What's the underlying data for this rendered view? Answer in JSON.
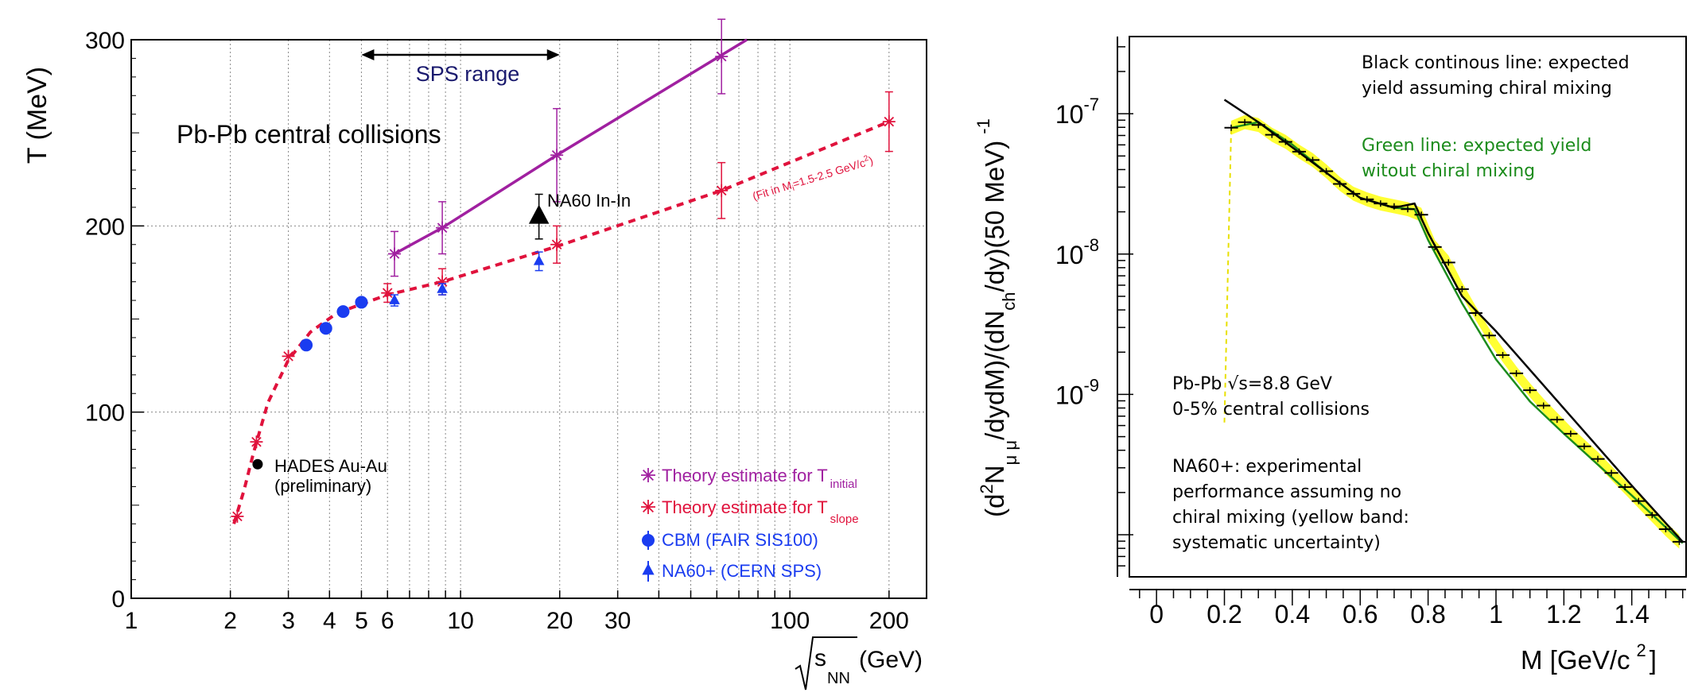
{
  "chart_data": [
    {
      "type": "scatter",
      "xscale": "log",
      "title": "Pb-Pb central collisions",
      "xlabel_sqrt": "s",
      "xlabel_sub": "NN",
      "xlabel_unit": "(GeV)",
      "ylabel": "T (MeV)",
      "xlim": [
        1,
        260
      ],
      "ylim": [
        0,
        300
      ],
      "x_tick_values": [
        1,
        2,
        3,
        4,
        5,
        6,
        10,
        20,
        30,
        100,
        200
      ],
      "x_tick_labels": [
        "1",
        "2",
        "3",
        "4",
        "5",
        "6",
        "10",
        "20",
        "30",
        "100",
        "200"
      ],
      "y_tick_values": [
        0,
        100,
        200,
        300
      ],
      "y_tick_labels": [
        "0",
        "100",
        "200",
        "300"
      ],
      "grid": "vertical-dotted",
      "annotations": {
        "sps_range": "SPS range",
        "sps_range_from": 5,
        "sps_range_to": 20,
        "na60_inin": "NA60 In-In",
        "hades_line1": "HADES Au-Au",
        "hades_line2": "(preliminary)",
        "fit_note": "(Fit in M",
        "fit_note_sub": "i",
        "fit_note_mid": "=1.5-2.5 GeV/c",
        "fit_note_sup": "2",
        "fit_note_end": ")"
      },
      "legend": {
        "placement": "bottom-right",
        "entries": [
          {
            "label": "Theory estimate for T",
            "sub": "initial",
            "color": "#a020a0",
            "marker": "star"
          },
          {
            "label": "Theory estimate for T",
            "sub": "slope",
            "color": "#e0123c",
            "marker": "star"
          },
          {
            "label": "CBM (FAIR SIS100)",
            "sub": "",
            "color": "#1a3cf0",
            "marker": "circle"
          },
          {
            "label": "NA60+ (CERN SPS)",
            "sub": "",
            "color": "#1a3cf0",
            "marker": "triangle"
          }
        ]
      },
      "series": [
        {
          "name": "T_initial",
          "color": "#a020a0",
          "points": [
            {
              "x": 6.3,
              "y": 185,
              "err": 12
            },
            {
              "x": 8.8,
              "y": 199,
              "err": 14
            },
            {
              "x": 19.6,
              "y": 238,
              "err": 25
            },
            {
              "x": 62,
              "y": 291,
              "err": 20
            }
          ],
          "line": [
            [
              6.3,
              185
            ],
            [
              8.8,
              199
            ],
            [
              19.6,
              238
            ],
            [
              74,
              300
            ]
          ]
        },
        {
          "name": "T_slope",
          "color": "#e0123c",
          "points": [
            {
              "x": 2.1,
              "y": 44,
              "err": 0
            },
            {
              "x": 2.4,
              "y": 84,
              "err": 0
            },
            {
              "x": 3.0,
              "y": 130,
              "err": 0
            },
            {
              "x": 6.0,
              "y": 164,
              "err": 5
            },
            {
              "x": 8.8,
              "y": 170,
              "err": 7
            },
            {
              "x": 19.6,
              "y": 190,
              "err": 10
            },
            {
              "x": 62,
              "y": 219,
              "err": 15
            },
            {
              "x": 200,
              "y": 256,
              "err": 16
            }
          ],
          "fit": [
            [
              2.05,
              40
            ],
            [
              2.2,
              58
            ],
            [
              2.35,
              78
            ],
            [
              2.6,
              105
            ],
            [
              3.0,
              128
            ],
            [
              3.5,
              143
            ],
            [
              4.2,
              153
            ],
            [
              5.0,
              158
            ],
            [
              6.0,
              163
            ],
            [
              8.8,
              170
            ],
            [
              19.6,
              189
            ],
            [
              62,
              219
            ],
            [
              200,
              256
            ]
          ]
        },
        {
          "name": "CBM",
          "color": "#1a3cf0",
          "points": [
            {
              "x": 3.4,
              "y": 136
            },
            {
              "x": 3.9,
              "y": 145
            },
            {
              "x": 4.4,
              "y": 154
            },
            {
              "x": 5.0,
              "y": 159
            }
          ]
        },
        {
          "name": "NA60+",
          "color": "#1a3cf0",
          "points": [
            {
              "x": 6.3,
              "y": 160,
              "err": 3
            },
            {
              "x": 8.8,
              "y": 166,
              "err": 3
            },
            {
              "x": 17.3,
              "y": 181,
              "err": 5
            }
          ]
        },
        {
          "name": "NA60 In-In",
          "color": "#000000",
          "points": [
            {
              "x": 17.3,
              "y": 205,
              "err": 12
            }
          ]
        },
        {
          "name": "HADES Au-Au",
          "color": "#000000",
          "points": [
            {
              "x": 2.42,
              "y": 72
            }
          ]
        }
      ]
    },
    {
      "type": "line",
      "yscale": "log",
      "xlabel": "M [GeV/c",
      "xlabel_sup": "2",
      "xlabel_end": "]",
      "ylabel": {
        "p1": "(d",
        "p1_sup": "2",
        "p2": "N",
        "p2_sub": "μ μ",
        "p3": "/dydM)/(dN",
        "p3_sub": "ch",
        "p4": "/dy)(50 MeV)",
        "p4_sup": "-1"
      },
      "xlim": [
        -0.08,
        1.56
      ],
      "ylim_exp": [
        -10.3,
        -6.45
      ],
      "x_tick_values": [
        0,
        0.2,
        0.4,
        0.6,
        0.8,
        1,
        1.2,
        1.4
      ],
      "x_tick_labels": [
        "0",
        "0.2",
        "0.4",
        "0.6",
        "0.8",
        "1",
        "1.2",
        "1.4"
      ],
      "y_tick_values_exp": [
        -9,
        -8,
        -7
      ],
      "y_tick_labels": [
        {
          "base": "10",
          "exp": "-9"
        },
        {
          "base": "10",
          "exp": "-8"
        },
        {
          "base": "10",
          "exp": "-7"
        }
      ],
      "annotations": {
        "black_line_1": "Black continous line: expected",
        "black_line_2": "yield assuming chiral mixing",
        "green_line_1": "Green line: expected yield",
        "green_line_2": "witout chiral mixing",
        "system_1": "Pb-Pb √s=8.8 GeV",
        "system_2": "0-5% central collisions",
        "na60_1": "NA60+: experimental",
        "na60_2": "performance assuming no",
        "na60_3": "chiral mixing (yellow band:",
        "na60_4": "systematic uncertainty)"
      },
      "series": [
        {
          "name": "chiral mixing",
          "color": "#000000",
          "points_logy": [
            [
              0.2,
              -6.9
            ],
            [
              0.3,
              -7.06
            ],
            [
              0.4,
              -7.24
            ],
            [
              0.5,
              -7.42
            ],
            [
              0.6,
              -7.6
            ],
            [
              0.7,
              -7.67
            ],
            [
              0.76,
              -7.64
            ],
            [
              0.8,
              -7.85
            ],
            [
              0.9,
              -8.3
            ],
            [
              1.0,
              -8.55
            ],
            [
              1.2,
              -9.1
            ],
            [
              1.4,
              -9.65
            ],
            [
              1.55,
              -10.05
            ]
          ]
        },
        {
          "name": "without chiral mixing",
          "color": "#1c8c1c",
          "points_logy": [
            [
              0.22,
              -7.1
            ],
            [
              0.3,
              -7.06
            ],
            [
              0.4,
              -7.22
            ],
            [
              0.5,
              -7.42
            ],
            [
              0.6,
              -7.6
            ],
            [
              0.7,
              -7.67
            ],
            [
              0.76,
              -7.68
            ],
            [
              0.8,
              -7.9
            ],
            [
              0.9,
              -8.35
            ],
            [
              1.0,
              -8.75
            ],
            [
              1.1,
              -9.05
            ],
            [
              1.2,
              -9.28
            ],
            [
              1.3,
              -9.5
            ],
            [
              1.4,
              -9.72
            ],
            [
              1.55,
              -10.06
            ]
          ]
        },
        {
          "name": "NA60+ performance",
          "color": "#000000",
          "band_color": "#ffff33",
          "band_halfwidth_logy": 0.05,
          "points_logy": [
            [
              0.22,
              -7.1
            ],
            [
              0.26,
              -7.06
            ],
            [
              0.3,
              -7.08
            ],
            [
              0.34,
              -7.15
            ],
            [
              0.38,
              -7.2
            ],
            [
              0.42,
              -7.27
            ],
            [
              0.46,
              -7.33
            ],
            [
              0.5,
              -7.41
            ],
            [
              0.54,
              -7.5
            ],
            [
              0.58,
              -7.57
            ],
            [
              0.62,
              -7.61
            ],
            [
              0.66,
              -7.64
            ],
            [
              0.7,
              -7.66
            ],
            [
              0.74,
              -7.68
            ],
            [
              0.78,
              -7.72
            ],
            [
              0.82,
              -7.95
            ],
            [
              0.86,
              -8.06
            ],
            [
              0.9,
              -8.25
            ],
            [
              0.94,
              -8.42
            ],
            [
              0.98,
              -8.58
            ],
            [
              1.02,
              -8.72
            ],
            [
              1.06,
              -8.85
            ],
            [
              1.1,
              -8.97
            ],
            [
              1.14,
              -9.08
            ],
            [
              1.18,
              -9.18
            ],
            [
              1.22,
              -9.28
            ],
            [
              1.26,
              -9.37
            ],
            [
              1.3,
              -9.46
            ],
            [
              1.34,
              -9.56
            ],
            [
              1.38,
              -9.66
            ],
            [
              1.42,
              -9.76
            ],
            [
              1.46,
              -9.86
            ],
            [
              1.5,
              -9.96
            ],
            [
              1.54,
              -10.05
            ]
          ]
        }
      ],
      "yellow_dashed_edge": [
        [
          0.2,
          -9.2
        ],
        [
          0.22,
          -7.1
        ]
      ]
    }
  ]
}
